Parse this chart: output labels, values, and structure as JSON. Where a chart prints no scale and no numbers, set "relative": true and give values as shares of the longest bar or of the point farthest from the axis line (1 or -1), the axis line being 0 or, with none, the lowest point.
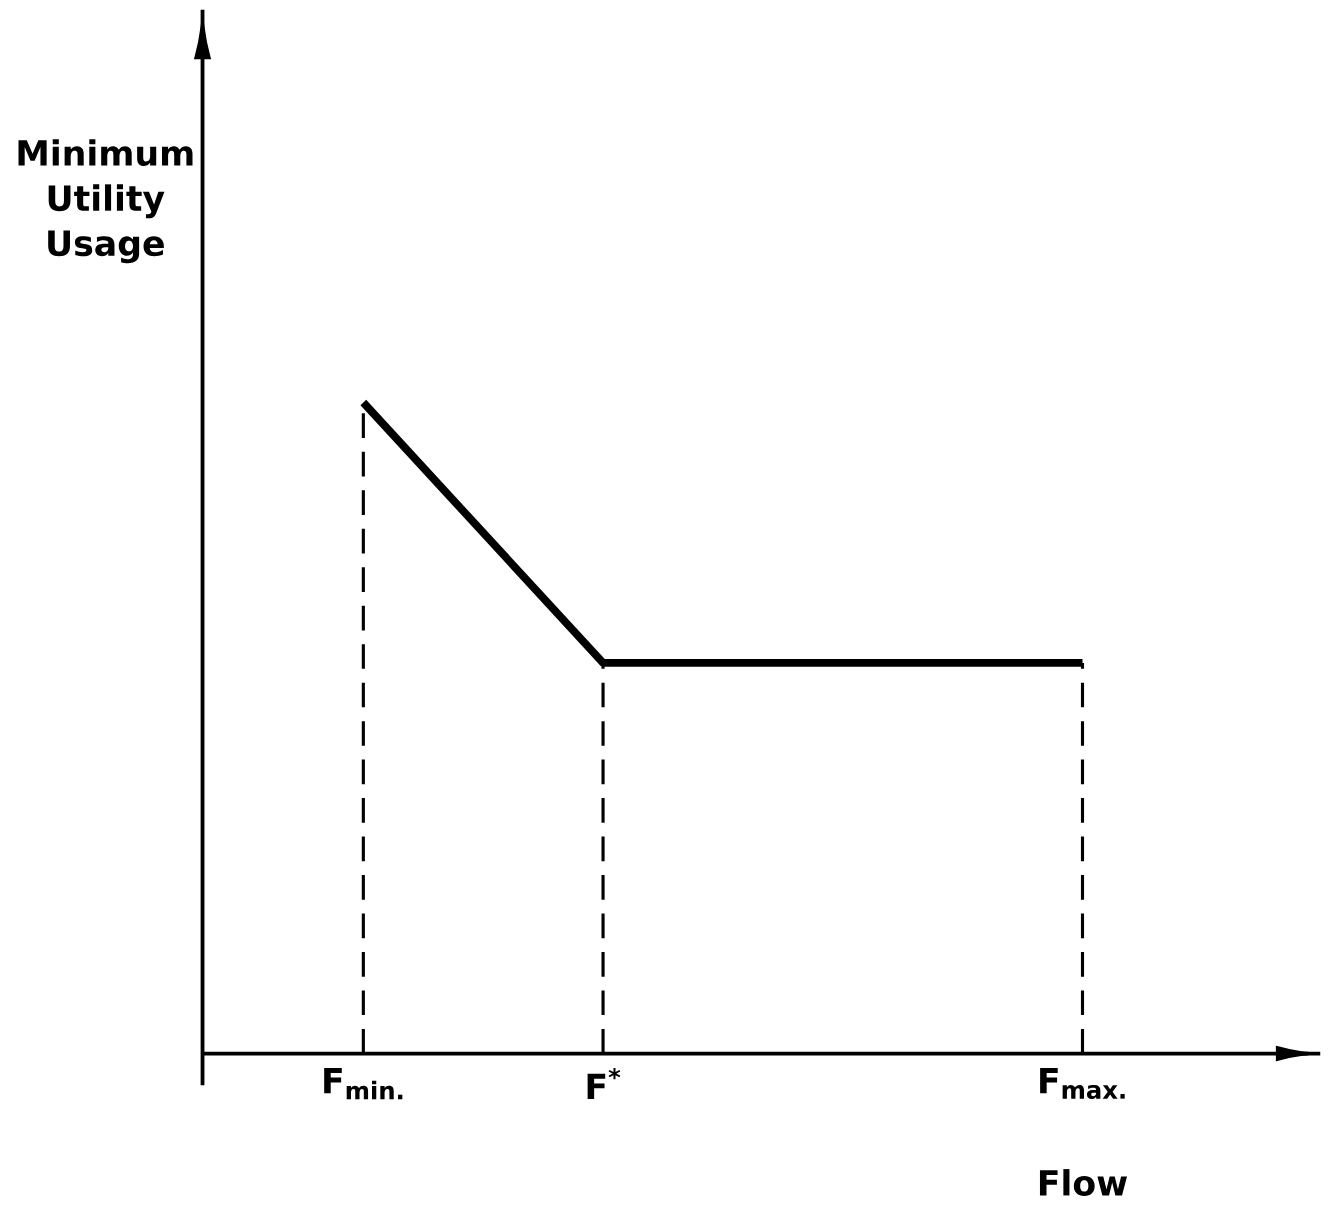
{
  "chart_data": {
    "type": "line",
    "xlabel": "Flow",
    "ylabel": "Minimum Utility Usage",
    "relative": true,
    "categories": [
      "F$_{min.}$",
      "F$^{*}$",
      null,
      "F$_{max.}$"
    ],
    "series": [
      {
        "color": "#000000",
        "values": [
          1,
          0.6,
          0.6,
          0.6
        ],
        "line_style": "solid"
      }
    ],
    "marker": "none",
    "ref_lines": [
      {
        "axis": "x",
        "value": "F$_{min.}$",
        "line_style": "dashed",
        "color": "#000000"
      },
      {
        "axis": "x",
        "value": "F$^{*}$",
        "line_style": "dashed",
        "color": "#000000"
      },
      {
        "axis": "x",
        "value": "F$_{max.}$",
        "line_style": "dashed",
        "color": "#000000"
      }
    ]
  }
}
